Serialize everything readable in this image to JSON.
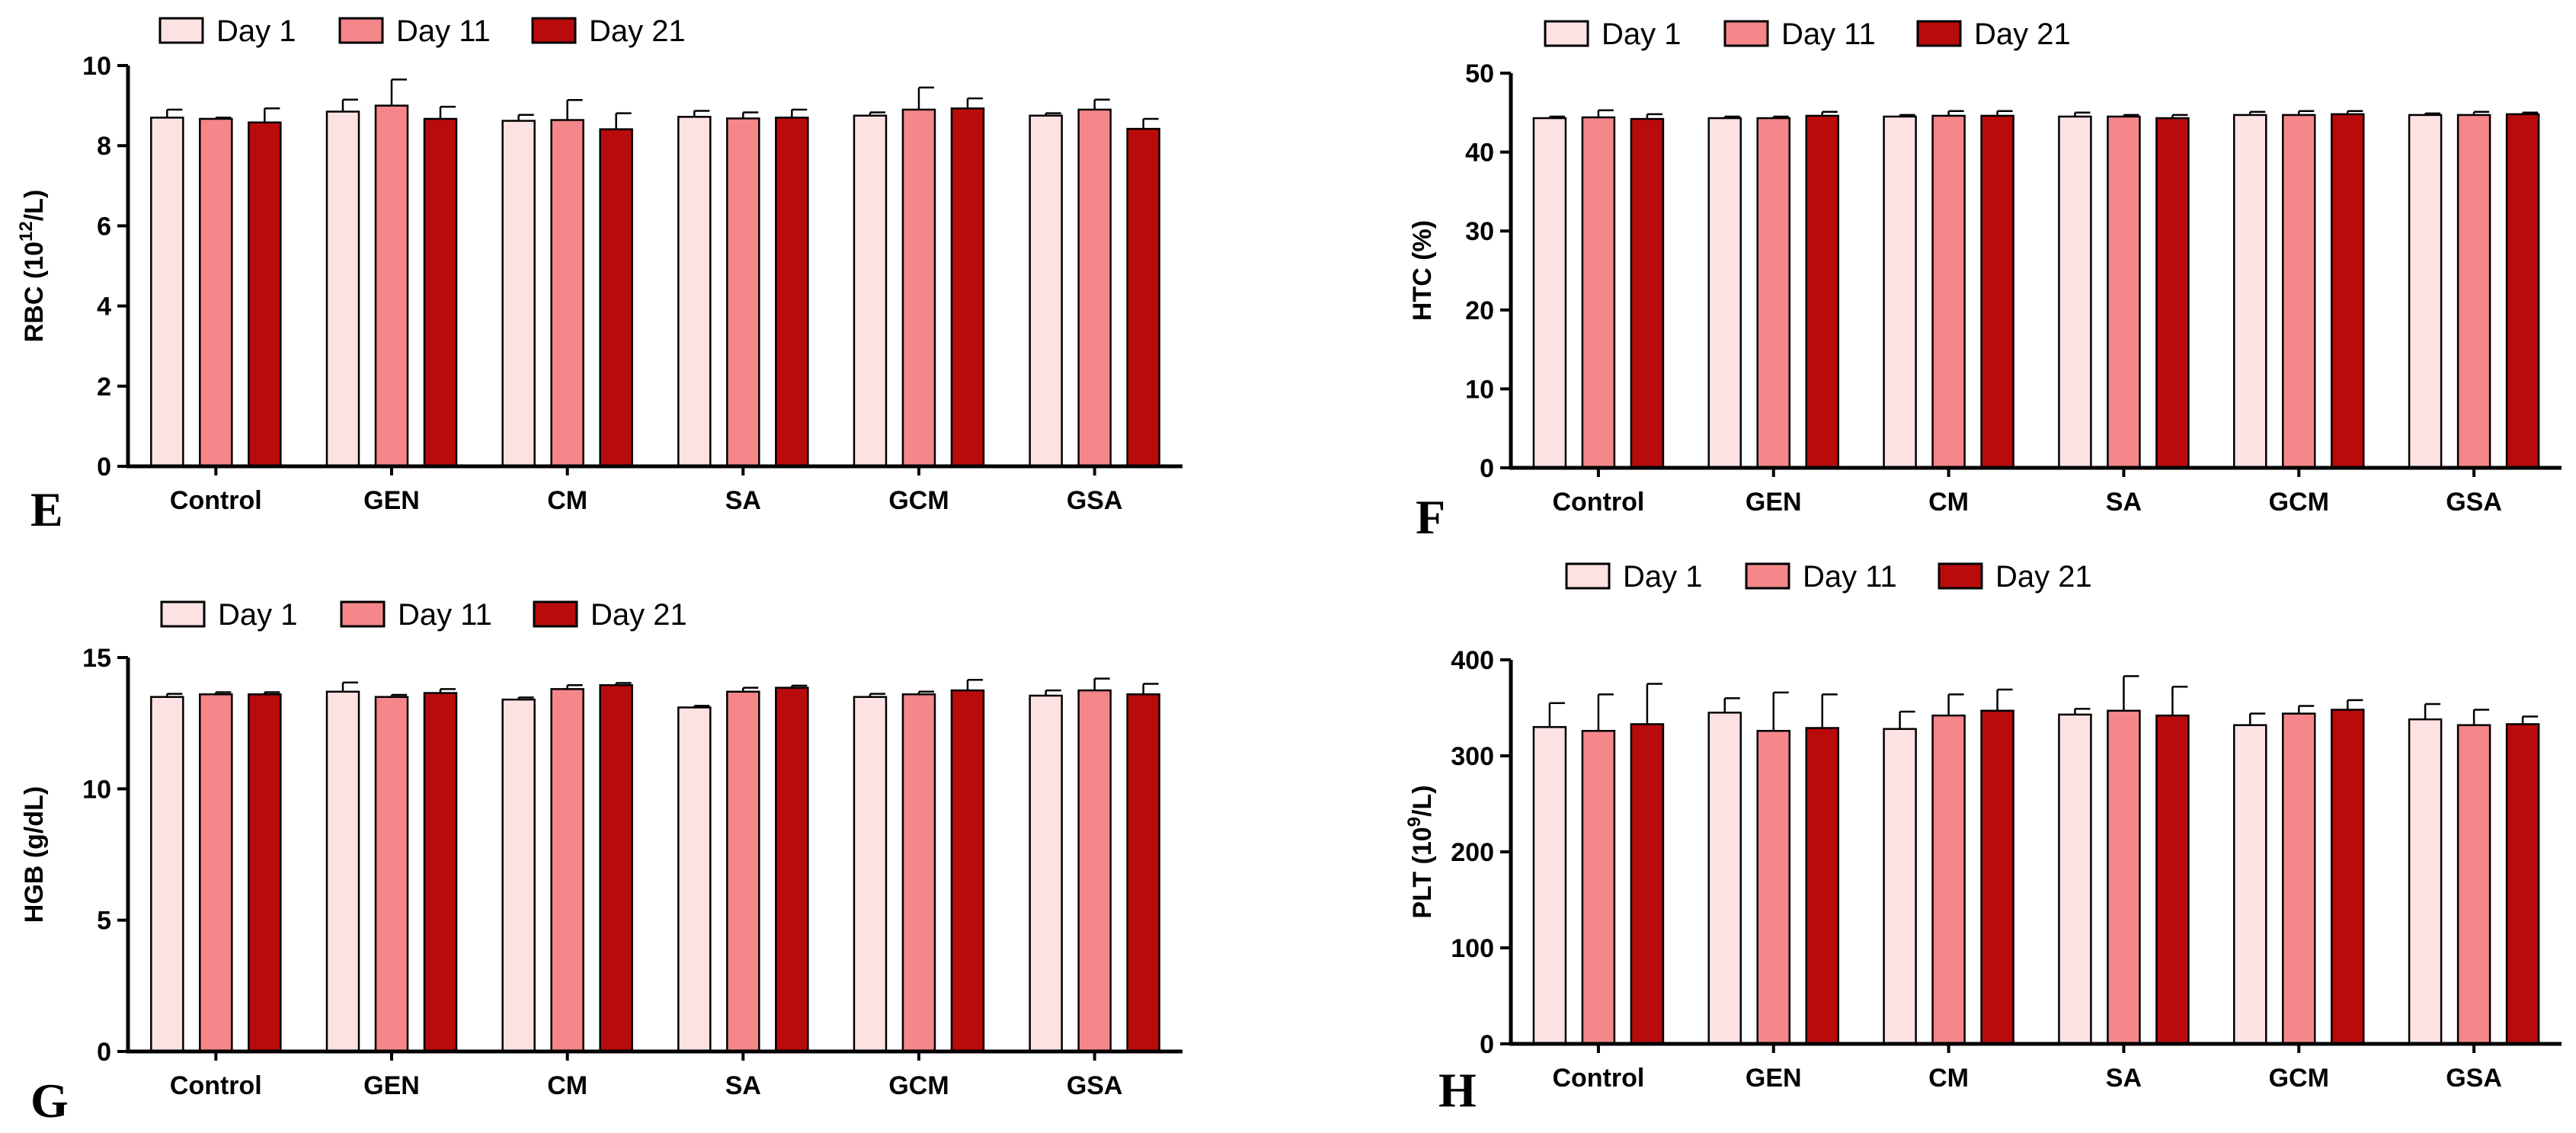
{
  "colors": {
    "day1": "#fde2e3",
    "day11": "#f5868a",
    "day21": "#b90b0c",
    "stroke": "#000000"
  },
  "legend": [
    "Day 1",
    "Day 11",
    "Day 21"
  ],
  "chart_data": [
    {
      "type": "bar",
      "panel": "E",
      "ylabel_main": "RBC (10",
      "ylabel_sup": "12",
      "ylabel_tail": "/L)",
      "categories": [
        "Control",
        "GEN",
        "CM",
        "SA",
        "GCM",
        "GSA"
      ],
      "ylim": [
        0,
        10
      ],
      "yticks": [
        "0",
        "2",
        "4",
        "6",
        "8",
        "10"
      ],
      "series": [
        {
          "name": "Day 1",
          "values": [
            8.7,
            8.85,
            8.62,
            8.72,
            8.75,
            8.75
          ],
          "errors": [
            0.2,
            0.3,
            0.15,
            0.15,
            0.08,
            0.06
          ]
        },
        {
          "name": "Day 11",
          "values": [
            8.67,
            9.0,
            8.64,
            8.68,
            8.9,
            8.9
          ],
          "errors": [
            0.03,
            0.65,
            0.5,
            0.15,
            0.55,
            0.25
          ]
        },
        {
          "name": "Day 21",
          "values": [
            8.58,
            8.67,
            8.41,
            8.7,
            8.93,
            8.42
          ],
          "errors": [
            0.35,
            0.3,
            0.4,
            0.2,
            0.25,
            0.25
          ]
        }
      ]
    },
    {
      "type": "bar",
      "panel": "F",
      "ylabel_main": "HTC (%)",
      "ylabel_sup": "",
      "ylabel_tail": "",
      "categories": [
        "Control",
        "GEN",
        "CM",
        "SA",
        "GCM",
        "GSA"
      ],
      "ylim": [
        0,
        50
      ],
      "yticks": [
        "0",
        "10",
        "20",
        "30",
        "40",
        "50"
      ],
      "series": [
        {
          "name": "Day 1",
          "values": [
            44.3,
            44.3,
            44.5,
            44.5,
            44.7,
            44.7
          ],
          "errors": [
            0.2,
            0.2,
            0.2,
            0.5,
            0.4,
            0.2
          ]
        },
        {
          "name": "Day 11",
          "values": [
            44.4,
            44.3,
            44.6,
            44.5,
            44.7,
            44.7
          ],
          "errors": [
            0.9,
            0.2,
            0.6,
            0.2,
            0.5,
            0.4
          ]
        },
        {
          "name": "Day 21",
          "values": [
            44.2,
            44.6,
            44.6,
            44.3,
            44.8,
            44.8
          ],
          "errors": [
            0.6,
            0.5,
            0.6,
            0.4,
            0.4,
            0.2
          ]
        }
      ]
    },
    {
      "type": "bar",
      "panel": "G",
      "ylabel_main": "HGB (g/dL)",
      "ylabel_sup": "",
      "ylabel_tail": "",
      "categories": [
        "Control",
        "GEN",
        "CM",
        "SA",
        "GCM",
        "GSA"
      ],
      "ylim": [
        0,
        15
      ],
      "yticks": [
        "0",
        "5",
        "10",
        "15"
      ],
      "series": [
        {
          "name": "Day 1",
          "values": [
            13.5,
            13.7,
            13.4,
            13.1,
            13.5,
            13.55
          ],
          "errors": [
            0.12,
            0.35,
            0.08,
            0.06,
            0.12,
            0.2
          ]
        },
        {
          "name": "Day 11",
          "values": [
            13.6,
            13.5,
            13.8,
            13.7,
            13.6,
            13.75
          ],
          "errors": [
            0.08,
            0.08,
            0.15,
            0.15,
            0.1,
            0.45
          ]
        },
        {
          "name": "Day 21",
          "values": [
            13.6,
            13.65,
            13.95,
            13.85,
            13.75,
            13.6
          ],
          "errors": [
            0.08,
            0.15,
            0.08,
            0.08,
            0.4,
            0.4
          ]
        }
      ]
    },
    {
      "type": "bar",
      "panel": "H",
      "ylabel_main": "PLT (10",
      "ylabel_sup": "9",
      "ylabel_tail": "/L)",
      "categories": [
        "Control",
        "GEN",
        "CM",
        "SA",
        "GCM",
        "GSA"
      ],
      "ylim": [
        0,
        400
      ],
      "yticks": [
        "0",
        "100",
        "200",
        "300",
        "400"
      ],
      "series": [
        {
          "name": "Day 1",
          "values": [
            330,
            345,
            328,
            343,
            332,
            338
          ],
          "errors": [
            25,
            15,
            18,
            6,
            12,
            16
          ]
        },
        {
          "name": "Day 11",
          "values": [
            326,
            326,
            342,
            347,
            344,
            332
          ],
          "errors": [
            38,
            40,
            22,
            36,
            8,
            16
          ]
        },
        {
          "name": "Day 21",
          "values": [
            333,
            329,
            347,
            342,
            348,
            333
          ],
          "errors": [
            42,
            35,
            22,
            30,
            10,
            8
          ]
        }
      ]
    }
  ]
}
